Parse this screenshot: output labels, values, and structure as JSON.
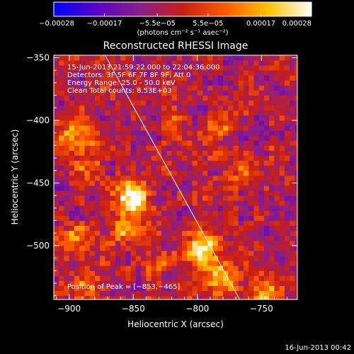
{
  "chart_data": {
    "type": "heatmap",
    "title": "Reconstructed RHESSI Image",
    "xlabel": "Heliocentric X (arcsec)",
    "ylabel": "Heliocentric Y (arcsec)",
    "xlim": [
      -912,
      -722
    ],
    "ylim": [
      -543,
      -348
    ],
    "x_ticks": [
      -900,
      -850,
      -800,
      -750
    ],
    "x_tick_labels": [
      "−900",
      "−850",
      "−800",
      "−750"
    ],
    "y_ticks": [
      -350,
      -400,
      -450,
      -500
    ],
    "y_tick_labels": [
      "−350",
      "−400",
      "−450",
      "−500"
    ],
    "grid": false,
    "colorbar": {
      "range": [
        -0.00028,
        0.00028
      ],
      "ticks": [
        -0.00028,
        -0.00017,
        -5.5e-05,
        5.5e-05,
        0.00017,
        0.00028
      ],
      "tick_labels": [
        "−0.00028",
        "−0.00017",
        "−5.5e−05",
        "5.5e−05",
        "0.00017",
        "0.00028"
      ],
      "unit_label": "(photons cm⁻² s⁻¹ asec⁻²)",
      "colors": [
        "#0000ff",
        "#5a00c8",
        "#8a1f8a",
        "#c81e14",
        "#ff5a00",
        "#ffc300",
        "#ffffff"
      ]
    },
    "info_lines": [
      "15-Jun-2013 21:59:22.000 to 22:04:36.000",
      "Detectors: 3F 5F 6F 7F 8F 9F, Att 0",
      "Energy Range: 25.0 - 50.0 keV",
      "Clean    Total counts: 8.53E+03"
    ],
    "peak_label": "Position of Peak = [−853,−465]",
    "peak": {
      "x": -853,
      "y": -465
    },
    "limb_line": {
      "x1": -872,
      "y1": -348,
      "x2": -767,
      "y2": -543
    },
    "hotspots": [
      {
        "x": -852,
        "y": -462,
        "sigma": 9,
        "amp": 1.0
      },
      {
        "x": -858,
        "y": -487,
        "sigma": 8,
        "amp": 0.55
      },
      {
        "x": -797,
        "y": -503,
        "sigma": 10,
        "amp": 0.85
      },
      {
        "x": -783,
        "y": -525,
        "sigma": 9,
        "amp": 0.55
      },
      {
        "x": -745,
        "y": -535,
        "sigma": 9,
        "amp": 0.65
      },
      {
        "x": -894,
        "y": -413,
        "sigma": 10,
        "amp": 0.6
      },
      {
        "x": -884,
        "y": -438,
        "sigma": 7,
        "amp": 0.35
      },
      {
        "x": -785,
        "y": -408,
        "sigma": 6,
        "amp": 0.55
      },
      {
        "x": -895,
        "y": -497,
        "sigma": 9,
        "amp": 0.45
      },
      {
        "x": -888,
        "y": -530,
        "sigma": 8,
        "amp": 0.45
      },
      {
        "x": -763,
        "y": -440,
        "sigma": 6,
        "amp": 0.35
      },
      {
        "x": -818,
        "y": -395,
        "sigma": 6,
        "amp": 0.3
      },
      {
        "x": -832,
        "y": -515,
        "sigma": 7,
        "amp": 0.4
      }
    ],
    "background_level": -0.12
  },
  "footer_date": "16-Jun-2013 00:42"
}
